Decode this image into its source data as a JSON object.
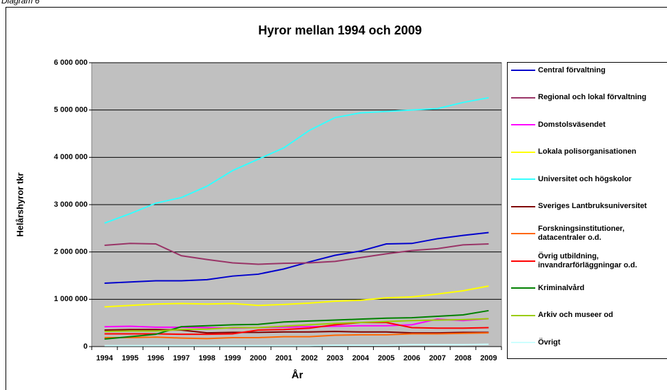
{
  "caption": "Diagram 6",
  "chart_data": {
    "type": "line",
    "title": "Hyror mellan 1994 och 2009",
    "x_label": "År",
    "y_label": "Helårshyror tkr",
    "categories": [
      "1994",
      "1995",
      "1996",
      "1997",
      "1998",
      "1999",
      "2000",
      "2001",
      "2002",
      "2003",
      "2004",
      "2005",
      "2006",
      "2007",
      "2008",
      "2009"
    ],
    "ylim": [
      0,
      6000000
    ],
    "yticks": [
      {
        "value": 0,
        "label": "0"
      },
      {
        "value": 1000000,
        "label": "1 000 000"
      },
      {
        "value": 2000000,
        "label": "2 000 000"
      },
      {
        "value": 3000000,
        "label": "3 000 000"
      },
      {
        "value": 4000000,
        "label": "4 000 000"
      },
      {
        "value": 5000000,
        "label": "5 000 000"
      },
      {
        "value": 6000000,
        "label": "6 000 000"
      }
    ],
    "grid": true,
    "series": [
      {
        "name": "Central förvaltning",
        "color": "#0000cc",
        "values": [
          1340000,
          1365000,
          1390000,
          1390000,
          1415000,
          1490000,
          1530000,
          1640000,
          1790000,
          1930000,
          2020000,
          2170000,
          2180000,
          2280000,
          2350000,
          2410000
        ]
      },
      {
        "name": "Regional och lokal förvaltning",
        "color": "#993366",
        "values": [
          2140000,
          2180000,
          2170000,
          1920000,
          1840000,
          1770000,
          1740000,
          1760000,
          1770000,
          1800000,
          1880000,
          1960000,
          2030000,
          2070000,
          2150000,
          2170000
        ]
      },
      {
        "name": "Domstolsväsendet",
        "color": "#ff00ff",
        "values": [
          420000,
          430000,
          410000,
          410000,
          400000,
          390000,
          400000,
          410000,
          420000,
          430000,
          440000,
          440000,
          460000,
          580000,
          550000,
          590000
        ]
      },
      {
        "name": "Lokala polisorganisationen",
        "color": "#ffff00",
        "values": [
          840000,
          870000,
          900000,
          910000,
          900000,
          910000,
          870000,
          890000,
          920000,
          960000,
          980000,
          1030000,
          1050000,
          1110000,
          1180000,
          1280000
        ]
      },
      {
        "name": "Universitet och högskolor",
        "color": "#33ffff",
        "values": [
          2610000,
          2810000,
          3030000,
          3150000,
          3390000,
          3720000,
          3960000,
          4200000,
          4570000,
          4840000,
          4940000,
          4970000,
          5000000,
          5030000,
          5160000,
          5260000
        ]
      },
      {
        "name": "Sveriges Lantbruksuniversitet",
        "color": "#800000",
        "values": [
          350000,
          360000,
          360000,
          350000,
          290000,
          300000,
          300000,
          310000,
          310000,
          320000,
          310000,
          310000,
          290000,
          290000,
          300000,
          300000
        ]
      },
      {
        "name": "Forskningsinstitutioner, datacentraler o.d.",
        "color": "#ff6600",
        "values": [
          190000,
          190000,
          200000,
          180000,
          170000,
          190000,
          190000,
          210000,
          210000,
          240000,
          250000,
          250000,
          270000,
          270000,
          280000,
          290000
        ]
      },
      {
        "name": "Övrig utbildning, invandrarförläggningar o.d.",
        "color": "#ff0000",
        "values": [
          270000,
          270000,
          270000,
          260000,
          260000,
          270000,
          350000,
          360000,
          390000,
          460000,
          510000,
          510000,
          400000,
          390000,
          390000,
          400000
        ]
      },
      {
        "name": "Kriminalvård",
        "color": "#008000",
        "values": [
          160000,
          210000,
          260000,
          420000,
          440000,
          460000,
          470000,
          520000,
          540000,
          560000,
          580000,
          600000,
          610000,
          640000,
          670000,
          760000
        ]
      },
      {
        "name": "Arkiv och museer od",
        "color": "#99cc00",
        "values": [
          320000,
          330000,
          330000,
          360000,
          370000,
          400000,
          400000,
          430000,
          460000,
          490000,
          510000,
          530000,
          550000,
          560000,
          570000,
          590000
        ]
      },
      {
        "name": "Övrigt",
        "color": "#ccffff",
        "values": [
          20000,
          20000,
          20000,
          20000,
          20000,
          20000,
          20000,
          20000,
          20000,
          30000,
          30000,
          30000,
          40000,
          40000,
          40000,
          50000
        ]
      }
    ]
  }
}
